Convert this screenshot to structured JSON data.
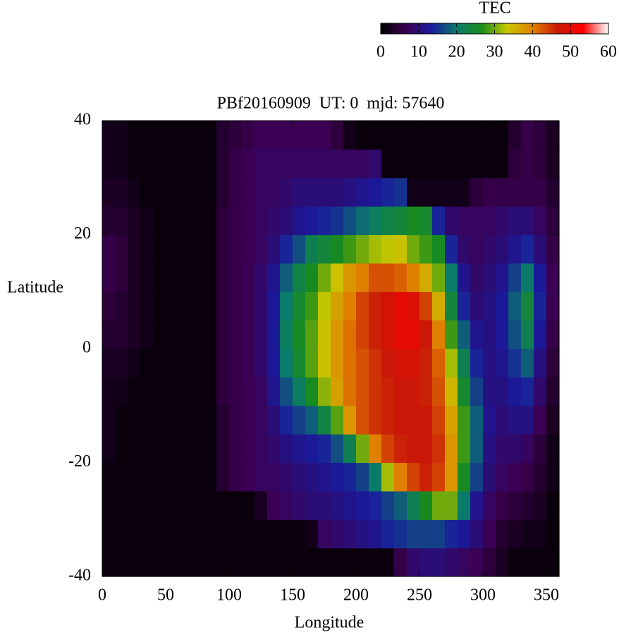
{
  "chart_data": {
    "type": "heatmap",
    "title": "PBf20160909  UT: 0  mjd: 57640",
    "xlabel": "Longitude",
    "ylabel": "Latitude",
    "colorbar_title": "TEC",
    "xlim": [
      0,
      360
    ],
    "xticks": [
      0,
      50,
      100,
      150,
      200,
      250,
      300,
      350
    ],
    "ylim": [
      -40,
      40
    ],
    "yticks": [
      -40,
      -20,
      0,
      20,
      40
    ],
    "zlim": [
      0,
      60
    ],
    "zticks": [
      0,
      10,
      20,
      30,
      40,
      50,
      60
    ],
    "colormap": [
      "#000000",
      "#3c0050",
      "#1a1a9c",
      "#0a7a6a",
      "#1a8c1a",
      "#c8c800",
      "#e08000",
      "#c81808",
      "#ff0000",
      "#ffffff"
    ],
    "x": [
      5,
      15,
      25,
      35,
      45,
      55,
      65,
      75,
      85,
      95,
      105,
      115,
      125,
      135,
      145,
      155,
      165,
      175,
      185,
      195,
      205,
      215,
      225,
      235,
      245,
      255,
      265,
      275,
      285,
      295,
      305,
      315,
      325,
      335,
      345,
      355
    ],
    "y": [
      -37.5,
      -32.5,
      -27.5,
      -22.5,
      -17.5,
      -12.5,
      -7.5,
      -2.5,
      2.5,
      7.5,
      12.5,
      17.5,
      22.5,
      27.5,
      32.5,
      37.5
    ],
    "z": [
      [
        1,
        1,
        1,
        1,
        1,
        1,
        1,
        1,
        1,
        1,
        1,
        1,
        1,
        1,
        1,
        1,
        1,
        1,
        1,
        1,
        1,
        1,
        1,
        6,
        9,
        10,
        10,
        9,
        8,
        7,
        5,
        3,
        1,
        1,
        1,
        1
      ],
      [
        1,
        1,
        1,
        1,
        1,
        1,
        1,
        1,
        1,
        1,
        1,
        1,
        1,
        1,
        1,
        1,
        2,
        8,
        9,
        10,
        11,
        12,
        14,
        15,
        16,
        16,
        16,
        14,
        13,
        10,
        7,
        4,
        3,
        2,
        2,
        1
      ],
      [
        1,
        1,
        1,
        1,
        1,
        1,
        1,
        1,
        1,
        1,
        1,
        1,
        3,
        7,
        8,
        9,
        10,
        10,
        11,
        12,
        13,
        14,
        16,
        18,
        22,
        26,
        30,
        30,
        20,
        12,
        8,
        6,
        5,
        4,
        3,
        1
      ],
      [
        1,
        1,
        1,
        1,
        1,
        1,
        1,
        1,
        1,
        4,
        6,
        7,
        8,
        8,
        9,
        10,
        11,
        12,
        13,
        14,
        16,
        20,
        32,
        40,
        44,
        46,
        44,
        38,
        26,
        16,
        10,
        8,
        7,
        6,
        4,
        2
      ],
      [
        2,
        1,
        1,
        1,
        1,
        1,
        1,
        1,
        1,
        4,
        6,
        7,
        8,
        9,
        11,
        12,
        13,
        14,
        17,
        22,
        30,
        40,
        44,
        46,
        47,
        47,
        45,
        38,
        28,
        18,
        11,
        9,
        9,
        8,
        5,
        2
      ],
      [
        2,
        1,
        1,
        1,
        1,
        1,
        1,
        1,
        1,
        4,
        6,
        7,
        8,
        10,
        14,
        16,
        18,
        23,
        29,
        38,
        43,
        45,
        46,
        47,
        47,
        47,
        44,
        37,
        28,
        18,
        12,
        10,
        11,
        11,
        7,
        3
      ],
      [
        2,
        2,
        1,
        1,
        1,
        1,
        1,
        1,
        1,
        5,
        6,
        7,
        8,
        12,
        17,
        21,
        26,
        31,
        37,
        41,
        43,
        45,
        46,
        47,
        47,
        46,
        43,
        35,
        25,
        16,
        11,
        11,
        13,
        14,
        9,
        4
      ],
      [
        3,
        3,
        2,
        1,
        1,
        1,
        1,
        1,
        1,
        5,
        6,
        7,
        9,
        13,
        20,
        25,
        29,
        34,
        38,
        41,
        43,
        45,
        47,
        48,
        48,
        46,
        42,
        32,
        22,
        14,
        11,
        12,
        15,
        18,
        11,
        5
      ],
      [
        4,
        4,
        3,
        2,
        1,
        1,
        1,
        1,
        1,
        5,
        6,
        7,
        9,
        13,
        21,
        26,
        29,
        34,
        38,
        41,
        44,
        46,
        48,
        50,
        50,
        47,
        40,
        28,
        18,
        12,
        11,
        13,
        17,
        22,
        13,
        6
      ],
      [
        5,
        4,
        3,
        2,
        1,
        1,
        1,
        1,
        1,
        5,
        6,
        7,
        9,
        13,
        20,
        25,
        28,
        33,
        37,
        40,
        44,
        46,
        48,
        50,
        49,
        44,
        36,
        24,
        14,
        10,
        11,
        13,
        18,
        24,
        14,
        7
      ],
      [
        6,
        5,
        3,
        2,
        1,
        1,
        1,
        1,
        1,
        5,
        6,
        7,
        9,
        12,
        18,
        23,
        26,
        30,
        34,
        38,
        40,
        43,
        43,
        42,
        40,
        36,
        30,
        20,
        12,
        9,
        10,
        12,
        16,
        20,
        13,
        7
      ],
      [
        6,
        5,
        3,
        2,
        1,
        1,
        1,
        1,
        1,
        5,
        6,
        7,
        8,
        10,
        14,
        17,
        22,
        24,
        26,
        28,
        30,
        32,
        33,
        34,
        30,
        28,
        26,
        14,
        9,
        8,
        9,
        10,
        12,
        14,
        10,
        6
      ],
      [
        4,
        4,
        3,
        2,
        1,
        1,
        1,
        1,
        1,
        5,
        6,
        7,
        8,
        9,
        10,
        12,
        13,
        14,
        15,
        17,
        19,
        21,
        23,
        24,
        26,
        25,
        14,
        9,
        8,
        8,
        8,
        9,
        10,
        10,
        8,
        5
      ],
      [
        3,
        3,
        2,
        1,
        1,
        1,
        1,
        1,
        1,
        4,
        6,
        7,
        8,
        8,
        9,
        10,
        10,
        10,
        10,
        11,
        12,
        13,
        14,
        15,
        2,
        2,
        2,
        2,
        2,
        5,
        6,
        6,
        6,
        6,
        6,
        4
      ],
      [
        2,
        2,
        1,
        1,
        1,
        1,
        1,
        1,
        1,
        4,
        6,
        7,
        8,
        8,
        8,
        8,
        8,
        8,
        8,
        8,
        8,
        9,
        1,
        1,
        1,
        1,
        1,
        1,
        1,
        1,
        1,
        1,
        5,
        6,
        5,
        3
      ],
      [
        2,
        2,
        1,
        1,
        1,
        1,
        1,
        1,
        1,
        4,
        5,
        6,
        7,
        7,
        7,
        7,
        7,
        7,
        5,
        2,
        1,
        1,
        1,
        1,
        1,
        1,
        1,
        1,
        1,
        1,
        1,
        1,
        4,
        6,
        5,
        3
      ]
    ]
  }
}
